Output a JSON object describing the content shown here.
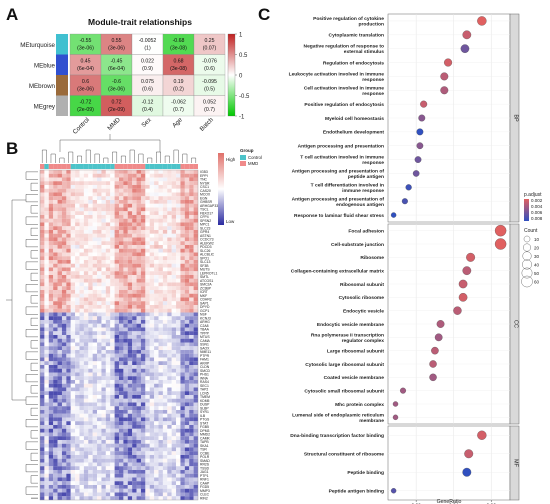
{
  "panel_labels": {
    "a": "A",
    "b": "B",
    "c": "C"
  },
  "chart_data": [
    {
      "type": "heatmap",
      "title": "Module-trait relationships",
      "rows": [
        "MEturquoise",
        "MEblue",
        "MEbrown",
        "MEgrey"
      ],
      "row_colors": [
        "#40c0d0",
        "#3050d0",
        "#9a6a3a",
        "#b0b0b0"
      ],
      "columns": [
        "Control",
        "MMD",
        "Sex",
        "Age",
        "Batch"
      ],
      "values": [
        [
          -0.55,
          0.55,
          -0.0052,
          -0.68,
          0.25
        ],
        [
          0.45,
          -0.45,
          0.022,
          0.68,
          -0.076
        ],
        [
          0.6,
          -0.6,
          0.075,
          0.19,
          -0.095
        ],
        [
          -0.72,
          0.72,
          -0.12,
          -0.062,
          0.052
        ]
      ],
      "pvalues": [
        [
          "(3e-06)",
          "(3e-06)",
          "(1)",
          "(3e-08)",
          "(0.07)"
        ],
        [
          "(6e-04)",
          "(6e-04)",
          "(0.9)",
          "(3e-08)",
          "(0.6)"
        ],
        [
          "(3e-06)",
          "(3e-06)",
          "(0.6)",
          "(0.2)",
          "(0.5)"
        ],
        [
          "(2e-09)",
          "(2e-09)",
          "(0.4)",
          "(0.7)",
          "(0.7)"
        ]
      ],
      "value_labels": [
        [
          "-0.55",
          "0.55",
          "-0.0052",
          "-0.68",
          "0.25"
        ],
        [
          "0.45",
          "-0.45",
          "0.022",
          "0.68",
          "-0.076"
        ],
        [
          "0.6",
          "-0.6",
          "0.075",
          "0.19",
          "-0.095"
        ],
        [
          "-0.72",
          "0.72",
          "-0.12",
          "-0.062",
          "0.052"
        ]
      ],
      "scale_ticks": [
        "1",
        "0.5",
        "0",
        "-0.5",
        "-1"
      ],
      "scale_range": [
        -1,
        1
      ],
      "low_color": "#00c800",
      "mid_color": "#ffffff",
      "high_color": "#c02020"
    },
    {
      "type": "heatmap",
      "legend_group_title": "Group",
      "legend_groups": [
        {
          "label": "Control",
          "color": "#4cc3c9"
        },
        {
          "label": "MMD",
          "color": "#f08a8a"
        }
      ],
      "scale_labels": {
        "high": "High",
        "low": "Low"
      },
      "high_color": "#e0706a",
      "mid_color": "#ffffff",
      "low_color": "#2a2aa0",
      "gene_labels": [
        "IGB3",
        "EPPI",
        "TNC",
        "NYSR",
        "CSC1",
        "CAS20",
        "MCOX",
        "EGN",
        "GHBSR",
        "ARHGAP33",
        "TSCL",
        "FBXO17",
        "CFP4",
        "SPSN2",
        "MPC1",
        "SLC23",
        "GPR4",
        "ASTN1",
        "CCDC73",
        "ALEKW2",
        "PDCD3",
        "SLC26",
        "ALCBLIC",
        "SPO1",
        "SLC13",
        "SF3B",
        "MUTS",
        "LEPROTL1",
        "SMTL",
        "ATCGS1",
        "SMC2A",
        "ZC3BP",
        "ICRT",
        "MKF",
        "CDHR2",
        "SAP1",
        "DPYD",
        "GCP1",
        "NSF",
        "KCNJ3",
        "ARHG",
        "C2A8",
        "TBAA",
        "TPPP",
        "MTUS",
        "CAMA",
        "SSN1",
        "SAOX",
        "NME11",
        "PTPR",
        "FAM1",
        "AKRP",
        "CLDN",
        "SMCD",
        "PHS1",
        "WNA",
        "RAS4",
        "SEC1",
        "TAP2",
        "LCN5",
        "TMEM",
        "KDM5",
        "DUSP",
        "SLBP",
        "SYR1",
        "ILB",
        "PTGS",
        "STAT",
        "FGB5",
        "DPM3",
        "MMD2",
        "CAMK",
        "TAPB",
        "SKA1",
        "TSR",
        "CCBE",
        "POLR",
        "SMAD",
        "RR2S",
        "TSSD",
        "JAG1",
        "PTP1",
        "RNF1",
        "CAAP",
        "FGD5",
        "MMP3",
        "CLEC",
        "RIN2"
      ],
      "up_gene_count": 38,
      "sample_columns": 36,
      "control_columns": [
        1,
        7,
        8,
        9,
        10,
        11,
        12,
        13,
        14,
        15,
        16,
        24,
        25,
        26,
        27,
        28,
        29,
        30,
        31
      ]
    },
    {
      "type": "scatter",
      "xlabel": "GeneRatio",
      "xticks": [
        0.02,
        0.04,
        0.06
      ],
      "xlim": [
        0.005,
        0.07
      ],
      "size_legend_title": "Count",
      "size_legend_values": [
        10,
        20,
        30,
        40,
        50,
        60
      ],
      "color_legend_title": "p.adjust",
      "color_legend_values": [
        "0.002",
        "0.004",
        "0.006",
        "0.008"
      ],
      "color_high": "#e06060",
      "color_low": "#3050c0",
      "facets": [
        {
          "name": "BP",
          "terms": [
            {
              "label": "Positive regulation of cytokine production",
              "x": 0.055,
              "count": 35,
              "padj": 0.0015
            },
            {
              "label": "Cytoplasmic translation",
              "x": 0.047,
              "count": 28,
              "padj": 0.0025
            },
            {
              "label": "Negative regulation of response to external stimulus",
              "x": 0.046,
              "count": 27,
              "padj": 0.006
            },
            {
              "label": "Regulation of endocytosis",
              "x": 0.037,
              "count": 22,
              "padj": 0.002
            },
            {
              "label": "Leukocyte activation involved in immune response",
              "x": 0.035,
              "count": 21,
              "padj": 0.003
            },
            {
              "label": "Cell activation involved in immune response",
              "x": 0.035,
              "count": 21,
              "padj": 0.0035
            },
            {
              "label": "Positive regulation of endocytosis",
              "x": 0.024,
              "count": 14,
              "padj": 0.0025
            },
            {
              "label": "Myeloid cell homeostasis",
              "x": 0.023,
              "count": 13,
              "padj": 0.005
            },
            {
              "label": "Endothelium development",
              "x": 0.022,
              "count": 13,
              "padj": 0.0085
            },
            {
              "label": "Antigen processing and presentation",
              "x": 0.022,
              "count": 12,
              "padj": 0.005
            },
            {
              "label": "T cell activation involved in immune response",
              "x": 0.021,
              "count": 12,
              "padj": 0.006
            },
            {
              "label": "Antigen processing and presentation of peptide antigen",
              "x": 0.02,
              "count": 11,
              "padj": 0.006
            },
            {
              "label": "T cell differentiation involved in immune response",
              "x": 0.016,
              "count": 9,
              "padj": 0.008
            },
            {
              "label": "Antigen processing and presentation of endogenous antigen",
              "x": 0.014,
              "count": 8,
              "padj": 0.0075
            },
            {
              "label": "Response to laminar fluid shear stress",
              "x": 0.008,
              "count": 5,
              "padj": 0.0085
            }
          ]
        },
        {
          "name": "CC",
          "terms": [
            {
              "label": "Focal adhesion",
              "x": 0.065,
              "count": 60,
              "padj": 0.0015
            },
            {
              "label": "Cell-substrate junction",
              "x": 0.065,
              "count": 60,
              "padj": 0.0015
            },
            {
              "label": "Ribosome",
              "x": 0.049,
              "count": 30,
              "padj": 0.002
            },
            {
              "label": "Collagen-containing extracellular matrix",
              "x": 0.047,
              "count": 28,
              "padj": 0.003
            },
            {
              "label": "Ribosomal subunit",
              "x": 0.045,
              "count": 27,
              "padj": 0.0025
            },
            {
              "label": "Cytosolic ribosome",
              "x": 0.045,
              "count": 27,
              "padj": 0.002
            },
            {
              "label": "Endocytic vesicle",
              "x": 0.042,
              "count": 25,
              "padj": 0.003
            },
            {
              "label": "Endocytic vesicle membrane",
              "x": 0.033,
              "count": 20,
              "padj": 0.0035
            },
            {
              "label": "Rna polymerase ii transcription regulator complex",
              "x": 0.032,
              "count": 19,
              "padj": 0.004
            },
            {
              "label": "Large ribosomal subunit",
              "x": 0.03,
              "count": 18,
              "padj": 0.003
            },
            {
              "label": "Cytosolic large ribosomal subunit",
              "x": 0.029,
              "count": 17,
              "padj": 0.003
            },
            {
              "label": "Coated vesicle membrane",
              "x": 0.029,
              "count": 17,
              "padj": 0.004
            },
            {
              "label": "Cytosolic small ribosomal subunit",
              "x": 0.013,
              "count": 8,
              "padj": 0.004
            },
            {
              "label": "Mhc protein complex",
              "x": 0.009,
              "count": 5,
              "padj": 0.004
            },
            {
              "label": "Lumenal side of endoplasmic reticulum membrane",
              "x": 0.009,
              "count": 5,
              "padj": 0.004
            }
          ]
        },
        {
          "name": "MF",
          "terms": [
            {
              "label": "Dna-binding transcription factor binding",
              "x": 0.055,
              "count": 34,
              "padj": 0.002
            },
            {
              "label": "Structural constituent of ribosome",
              "x": 0.048,
              "count": 30,
              "padj": 0.0025
            },
            {
              "label": "Peptide binding",
              "x": 0.047,
              "count": 29,
              "padj": 0.0085
            },
            {
              "label": "Peptide antigen binding",
              "x": 0.008,
              "count": 5,
              "padj": 0.007
            }
          ]
        }
      ]
    }
  ]
}
